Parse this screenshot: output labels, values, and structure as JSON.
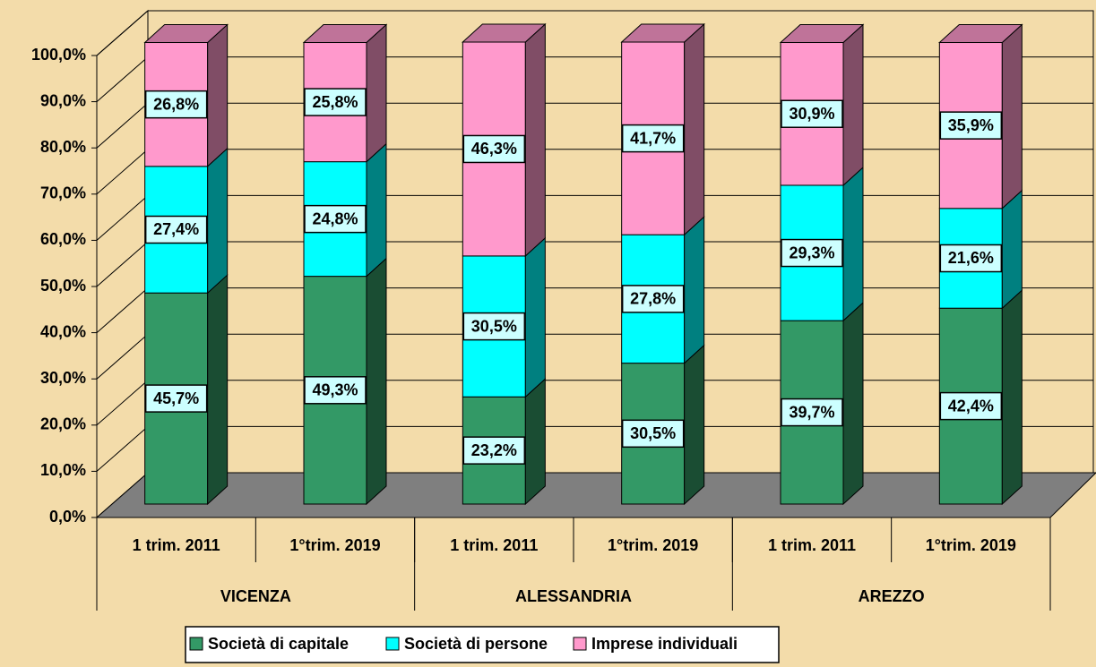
{
  "chart_data": {
    "type": "bar",
    "stacked": true,
    "categories": [
      "1 trim. 2011",
      "1°trim. 2019",
      "1 trim. 2011",
      "1°trim. 2019",
      "1  trim. 2011",
      "1°trim. 2019"
    ],
    "groups": [
      "VICENZA",
      "ALESSANDRIA",
      "AREZZO"
    ],
    "series": [
      {
        "name": "Società di capitale",
        "color": "#339966",
        "values": [
          45.7,
          49.3,
          23.2,
          30.5,
          39.7,
          42.4
        ],
        "value_labels": [
          "45,7%",
          "49,3%",
          "23,2%",
          "30,5%",
          "39,7%",
          "42,4%"
        ]
      },
      {
        "name": "Società di persone",
        "color": "#00ffff",
        "values": [
          27.4,
          24.8,
          30.5,
          27.8,
          29.3,
          21.6
        ],
        "value_labels": [
          "27,4%",
          "24,8%",
          "30,5%",
          "27,8%",
          "29,3%",
          "21,6%"
        ]
      },
      {
        "name": "Imprese individuali",
        "color": "#ff99cc",
        "values": [
          26.8,
          25.8,
          46.3,
          41.7,
          30.9,
          35.9
        ],
        "value_labels": [
          "26,8%",
          "25,8%",
          "46,3%",
          "41,7%",
          "30,9%",
          "35,9%"
        ]
      }
    ],
    "ylim": [
      0,
      100
    ],
    "yticks": [
      {
        "value": 0,
        "label": "0,0%"
      },
      {
        "value": 10,
        "label": "10,0%"
      },
      {
        "value": 20,
        "label": "20,0%"
      },
      {
        "value": 30,
        "label": "30,0%"
      },
      {
        "value": 40,
        "label": "40,0%"
      },
      {
        "value": 50,
        "label": "50,0%"
      },
      {
        "value": 60,
        "label": "60,0%"
      },
      {
        "value": 70,
        "label": "70,0%"
      },
      {
        "value": 80,
        "label": "80,0%"
      },
      {
        "value": 90,
        "label": "90,0%"
      },
      {
        "value": 100,
        "label": "100,0%"
      }
    ],
    "grid": true,
    "legend": "bottom"
  }
}
